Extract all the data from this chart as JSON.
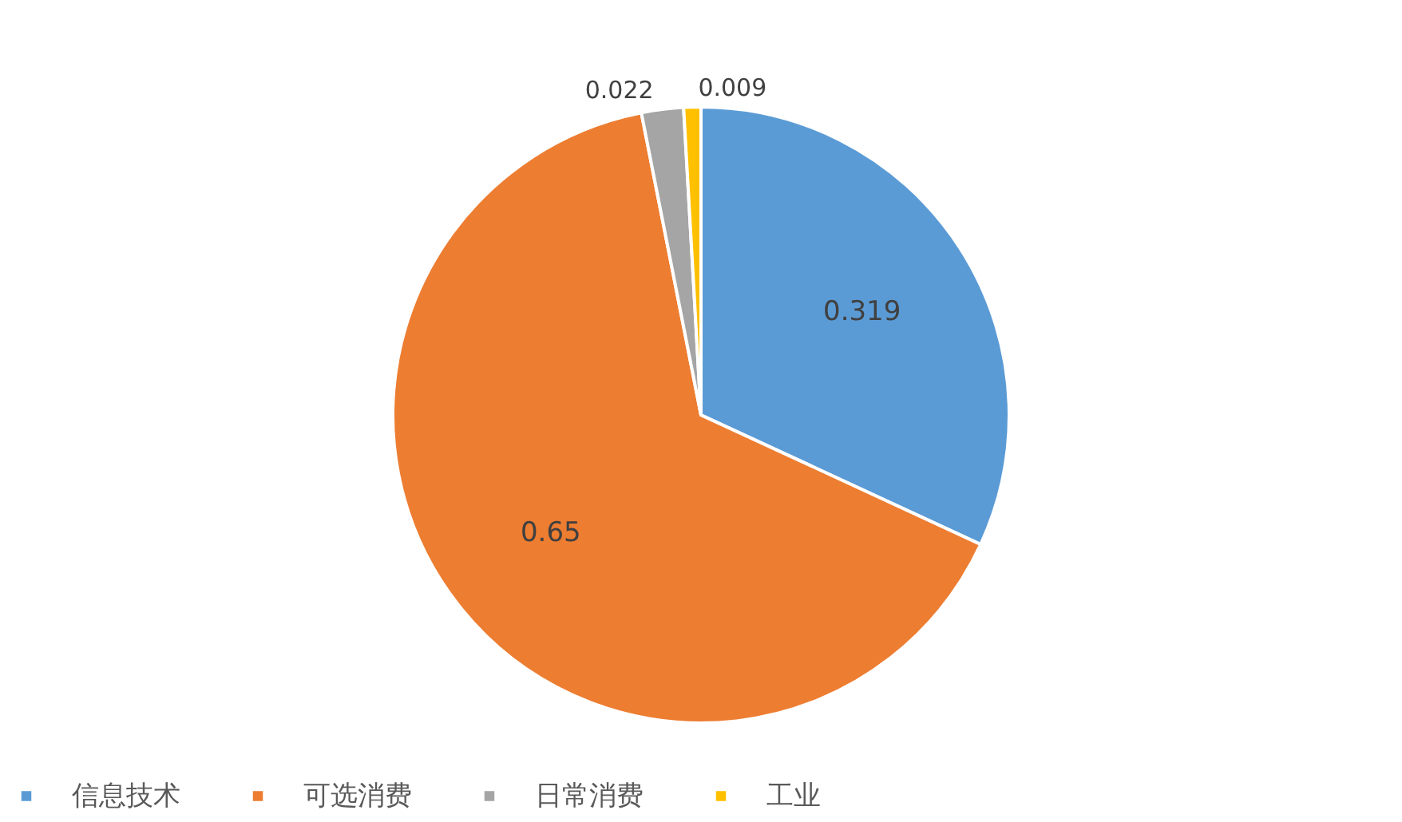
{
  "chart_data": {
    "type": "pie",
    "categories": [
      "信息技术",
      "可选消费",
      "日常消费",
      "工业"
    ],
    "values": [
      0.319,
      0.65,
      0.022,
      0.009
    ],
    "colors": [
      "#5b9bd5",
      "#ed7d31",
      "#a5a5a5",
      "#ffc000"
    ],
    "data_labels": true,
    "legend": "bottom"
  }
}
